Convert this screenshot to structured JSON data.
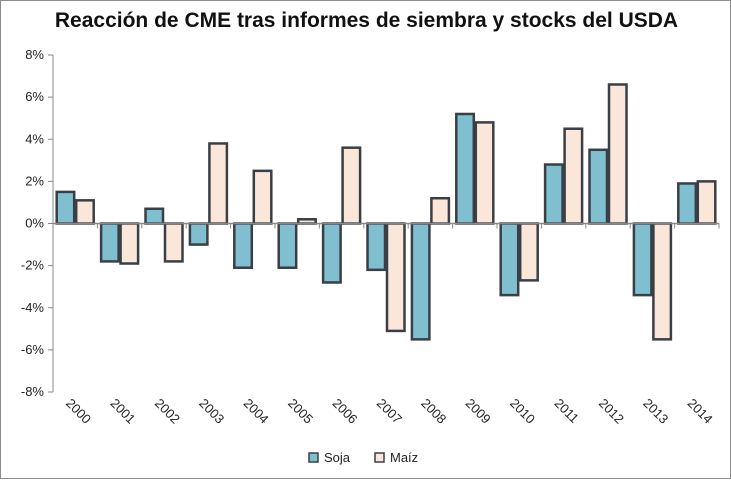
{
  "chart_data": {
    "type": "bar",
    "title": "Reacción de CME tras informes de siembra y stocks del USDA",
    "xlabel": "",
    "ylabel": "",
    "categories": [
      "2000",
      "2001",
      "2002",
      "2003",
      "2004",
      "2005",
      "2006",
      "2007",
      "2008",
      "2009",
      "2010",
      "2011",
      "2012",
      "2013",
      "2014"
    ],
    "series": [
      {
        "name": "Soja",
        "color": "#7fbfd0",
        "values": [
          1.5,
          -1.8,
          0.7,
          -1.0,
          -2.1,
          -2.1,
          -2.8,
          -2.2,
          -5.5,
          5.2,
          -3.4,
          2.8,
          3.5,
          -3.4,
          1.9
        ]
      },
      {
        "name": "Maíz",
        "color": "#fbe7da",
        "values": [
          1.1,
          -1.9,
          -1.8,
          3.8,
          2.5,
          0.2,
          3.6,
          -5.1,
          1.2,
          4.8,
          -2.7,
          4.5,
          6.6,
          -5.5,
          2.0
        ]
      }
    ],
    "ylim": [
      -8,
      8
    ],
    "yticks": [
      "8%",
      "6%",
      "4%",
      "2%",
      "0%",
      "-2%",
      "-4%",
      "-6%",
      "-8%"
    ],
    "ytick_values": [
      8,
      6,
      4,
      2,
      0,
      -2,
      -4,
      -6,
      -8
    ],
    "grid": false,
    "legend": "bottom",
    "bar_edge_color": "#3a3f46"
  }
}
